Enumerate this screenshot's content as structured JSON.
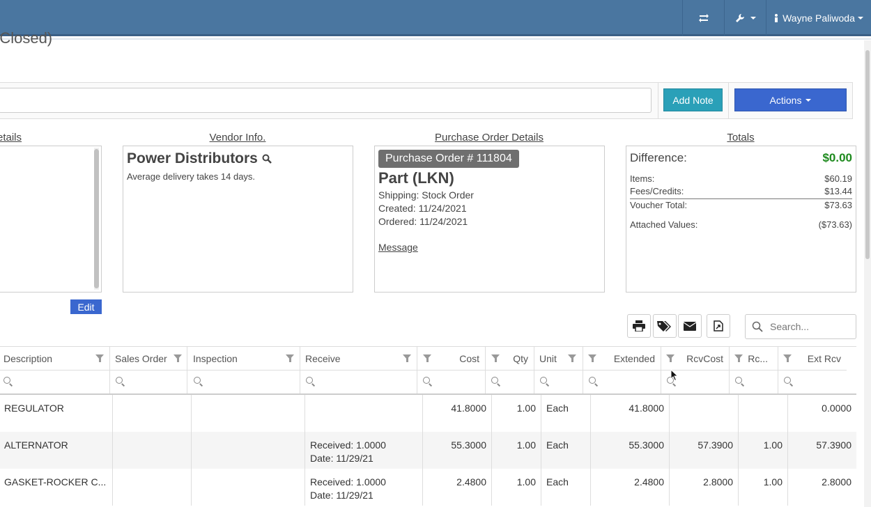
{
  "header": {
    "user_name": "Wayne Paliwoda",
    "closed_title": "(Closed)"
  },
  "toolbar": {
    "add_note_label": "Add Note",
    "actions_label": "Actions"
  },
  "sections": {
    "details_title": "etails",
    "vendor_title": "Vendor Info.",
    "po_title": "Purchase Order Details",
    "totals_title": "Totals",
    "edit_label": "Edit"
  },
  "vendor": {
    "name": "Power Distributors",
    "delivery_note": "Average delivery takes 14 days."
  },
  "purchase_order": {
    "badge": "Purchase Order # 111804",
    "type": "Part (LKN)",
    "shipping": "Shipping: Stock Order",
    "created": "Created: 11/24/2021",
    "ordered": "Ordered: 11/24/2021",
    "message_link": "Message"
  },
  "totals": {
    "difference_label": "Difference:",
    "difference_value": "$0.00",
    "items_label": "Items:",
    "items_value": "$60.19",
    "fees_label": "Fees/Credits:",
    "fees_value": "$13.44",
    "voucher_label": "Voucher Total:",
    "voucher_value": "$73.63",
    "attached_label": "Attached Values:",
    "attached_value": "($73.63)",
    "accent_green": "#1e8a1e"
  },
  "grid": {
    "search_placeholder": "Search...",
    "columns": {
      "description": "Description",
      "sales_order": "Sales Order",
      "inspection": "Inspection",
      "receive": "Receive",
      "cost": "Cost",
      "qty": "Qty",
      "unit": "Unit",
      "extended": "Extended",
      "rcvcost": "RcvCost",
      "rc": "Rc...",
      "ext_rcv": "Ext Rcv"
    },
    "rows": [
      {
        "description": "REGULATOR",
        "receive1": "",
        "receive2": "",
        "cost": "41.8000",
        "qty": "1.00",
        "unit": "Each",
        "extended": "41.8000",
        "rcvcost": "",
        "rc": "",
        "ext_rcv": "0.0000"
      },
      {
        "description": "ALTERNATOR",
        "receive1": "Received: 1.0000",
        "receive2": "Date: 11/29/21",
        "cost": "55.3000",
        "qty": "1.00",
        "unit": "Each",
        "extended": "55.3000",
        "rcvcost": "57.3900",
        "rc": "1.00",
        "ext_rcv": "57.3900"
      },
      {
        "description": "GASKET-ROCKER C...",
        "receive1": "Received: 1.0000",
        "receive2": "Date: 11/29/21",
        "cost": "2.4800",
        "qty": "1.00",
        "unit": "Each",
        "extended": "2.4800",
        "rcvcost": "2.8000",
        "rc": "1.00",
        "ext_rcv": "2.8000"
      }
    ]
  },
  "icons": [
    "swap-icon",
    "wrench-icon",
    "user-icon",
    "search-icon",
    "print-icon",
    "tags-icon",
    "envelope-icon",
    "export-icon",
    "filter-icon"
  ],
  "colors": {
    "topbar": "#4a76a0",
    "add_note": "#2aa0b8",
    "actions": "#3a67cf",
    "edit": "#3a67cf",
    "badge": "#6f6f6f"
  }
}
